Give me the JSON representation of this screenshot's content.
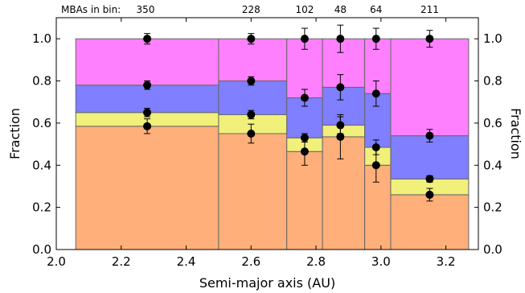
{
  "chart_data": {
    "type": "bar",
    "xlabel": "Semi-major axis (AU)",
    "ylabel": "Fraction",
    "right_ylabel": "Fraction",
    "xlim": [
      2.0,
      3.3
    ],
    "ylim": [
      0.0,
      1.1
    ],
    "xticks": [
      "2.0",
      "2.2",
      "2.4",
      "2.6",
      "2.8",
      "3.0",
      "3.2"
    ],
    "yticks": [
      "0.0",
      "0.2",
      "0.4",
      "0.6",
      "0.8",
      "1.0"
    ],
    "top_annotation_prefix": "MBAs in bin:",
    "grid": false,
    "legend": "none",
    "layer_colors": [
      "#FFAF7A",
      "#F0F07A",
      "#7F7FFF",
      "#FF80FF"
    ],
    "bins": [
      {
        "x0": 2.06,
        "x1": 2.5,
        "xc": 2.28,
        "count": "350",
        "bounds": [
          0.585,
          0.65,
          0.78,
          1.0
        ]
      },
      {
        "x0": 2.5,
        "x1": 2.71,
        "xc": 2.6,
        "count": "228",
        "bounds": [
          0.55,
          0.64,
          0.8,
          1.0
        ]
      },
      {
        "x0": 2.71,
        "x1": 2.82,
        "xc": 2.765,
        "count": "102",
        "bounds": [
          0.465,
          0.53,
          0.72,
          1.0
        ]
      },
      {
        "x0": 2.82,
        "x1": 2.95,
        "xc": 2.875,
        "count": "48",
        "bounds": [
          0.535,
          0.59,
          0.77,
          1.0
        ]
      },
      {
        "x0": 2.95,
        "x1": 3.03,
        "xc": 2.985,
        "count": "64",
        "bounds": [
          0.4,
          0.485,
          0.74,
          1.0
        ]
      },
      {
        "x0": 3.03,
        "x1": 3.27,
        "xc": 3.15,
        "count": "211",
        "bounds": [
          0.26,
          0.335,
          0.54,
          1.0
        ]
      }
    ],
    "points": [
      {
        "x": 2.28,
        "y": 0.585,
        "err": 0.035
      },
      {
        "x": 2.28,
        "y": 0.65,
        "err": 0.02
      },
      {
        "x": 2.28,
        "y": 0.78,
        "err": 0.02
      },
      {
        "x": 2.28,
        "y": 1.0,
        "err": 0.025
      },
      {
        "x": 2.6,
        "y": 0.55,
        "err": 0.045
      },
      {
        "x": 2.6,
        "y": 0.64,
        "err": 0.02
      },
      {
        "x": 2.6,
        "y": 0.8,
        "err": 0.02
      },
      {
        "x": 2.6,
        "y": 1.0,
        "err": 0.025
      },
      {
        "x": 2.765,
        "y": 0.465,
        "err": 0.065
      },
      {
        "x": 2.765,
        "y": 0.53,
        "err": 0.02
      },
      {
        "x": 2.765,
        "y": 0.72,
        "err": 0.04
      },
      {
        "x": 2.765,
        "y": 1.0,
        "err": 0.05
      },
      {
        "x": 2.875,
        "y": 0.535,
        "err": 0.105
      },
      {
        "x": 2.875,
        "y": 0.59,
        "err": 0.04
      },
      {
        "x": 2.875,
        "y": 0.77,
        "err": 0.06
      },
      {
        "x": 2.875,
        "y": 1.0,
        "err": 0.065
      },
      {
        "x": 2.985,
        "y": 0.4,
        "err": 0.08
      },
      {
        "x": 2.985,
        "y": 0.485,
        "err": 0.035
      },
      {
        "x": 2.985,
        "y": 0.74,
        "err": 0.06
      },
      {
        "x": 2.985,
        "y": 1.0,
        "err": 0.05
      },
      {
        "x": 3.15,
        "y": 0.26,
        "err": 0.03
      },
      {
        "x": 3.15,
        "y": 0.335,
        "err": 0.015
      },
      {
        "x": 3.15,
        "y": 0.54,
        "err": 0.03
      },
      {
        "x": 3.15,
        "y": 1.0,
        "err": 0.04
      }
    ]
  }
}
